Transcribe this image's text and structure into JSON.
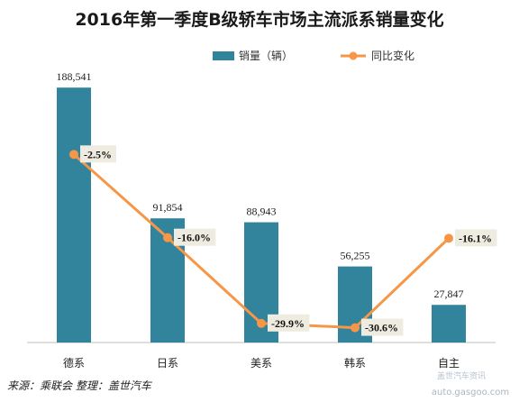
{
  "chart_data": {
    "type": "bar",
    "title": "2016年第一季度B级轿车市场主流派系销量变化",
    "categories": [
      "德系",
      "日系",
      "美系",
      "韩系",
      "自主"
    ],
    "series": [
      {
        "name": "销量（辆）",
        "type": "bar",
        "values": [
          188541,
          91854,
          88943,
          56255,
          27847
        ],
        "labels": [
          "188,541",
          "91,854",
          "88,943",
          "56,255",
          "27,847"
        ]
      },
      {
        "name": "同比变化",
        "type": "line",
        "values": [
          -2.5,
          -16.0,
          -29.9,
          -30.6,
          -16.1
        ],
        "labels": [
          "-2.5%",
          "-16.0%",
          "-29.9%",
          "-30.6%",
          "-16.1%"
        ]
      }
    ],
    "colors": {
      "bar": "#31849b",
      "line": "#f79646"
    },
    "legend_position": "top-right",
    "grid": false
  },
  "source_note": "来源：乘联会   整理：盖世汽车",
  "watermark": {
    "line1": "盖世汽车资讯",
    "line2": "auto.gasgoo.com"
  }
}
